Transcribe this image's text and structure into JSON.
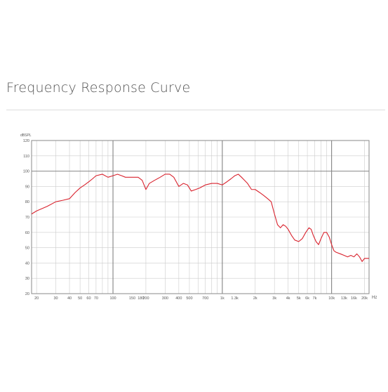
{
  "section": {
    "title": "Frequency Response Curve"
  },
  "chart_data": {
    "type": "line",
    "title": "",
    "xlabel": "",
    "ylabel": "dBSPL",
    "x_unit": "Hz",
    "x_scale": "log",
    "xlim": [
      18,
      22000
    ],
    "ylim": [
      20,
      120
    ],
    "grid": true,
    "y_ticks": [
      20,
      30,
      40,
      50,
      60,
      70,
      80,
      90,
      100,
      110,
      120
    ],
    "x_ticks": [
      {
        "v": 20,
        "label": "20"
      },
      {
        "v": 30,
        "label": "30"
      },
      {
        "v": 40,
        "label": "40"
      },
      {
        "v": 50,
        "label": "50"
      },
      {
        "v": 60,
        "label": "60"
      },
      {
        "v": 70,
        "label": "70"
      },
      {
        "v": 100,
        "label": "100"
      },
      {
        "v": 150,
        "label": "150"
      },
      {
        "v": 180,
        "label": "180"
      },
      {
        "v": 200,
        "label": "200"
      },
      {
        "v": 300,
        "label": "300"
      },
      {
        "v": 400,
        "label": "400"
      },
      {
        "v": 500,
        "label": "500"
      },
      {
        "v": 700,
        "label": "700"
      },
      {
        "v": 1000,
        "label": "1k"
      },
      {
        "v": 1300,
        "label": "1.3k"
      },
      {
        "v": 2000,
        "label": "2k"
      },
      {
        "v": 3000,
        "label": "3k"
      },
      {
        "v": 4000,
        "label": "4k"
      },
      {
        "v": 5000,
        "label": "5k"
      },
      {
        "v": 6000,
        "label": "6k"
      },
      {
        "v": 7000,
        "label": "7k"
      },
      {
        "v": 10000,
        "label": "10k"
      },
      {
        "v": 13000,
        "label": "13k"
      },
      {
        "v": 16000,
        "label": "16k"
      },
      {
        "v": 20000,
        "label": "20k"
      }
    ],
    "series": [
      {
        "color": "#d9232e",
        "points": [
          [
            18,
            72
          ],
          [
            20,
            74
          ],
          [
            25,
            77
          ],
          [
            30,
            80
          ],
          [
            35,
            81
          ],
          [
            40,
            82
          ],
          [
            45,
            86
          ],
          [
            50,
            89
          ],
          [
            55,
            91
          ],
          [
            60,
            93
          ],
          [
            65,
            95
          ],
          [
            70,
            97
          ],
          [
            80,
            98
          ],
          [
            90,
            96
          ],
          [
            100,
            97
          ],
          [
            110,
            98
          ],
          [
            120,
            97
          ],
          [
            130,
            96
          ],
          [
            150,
            96
          ],
          [
            170,
            96
          ],
          [
            185,
            94
          ],
          [
            200,
            88
          ],
          [
            215,
            92
          ],
          [
            240,
            94
          ],
          [
            270,
            96
          ],
          [
            300,
            98
          ],
          [
            330,
            98
          ],
          [
            360,
            96
          ],
          [
            400,
            90
          ],
          [
            440,
            92
          ],
          [
            480,
            91
          ],
          [
            520,
            87
          ],
          [
            570,
            88
          ],
          [
            620,
            89
          ],
          [
            700,
            91
          ],
          [
            800,
            92
          ],
          [
            900,
            92
          ],
          [
            1000,
            91
          ],
          [
            1100,
            93
          ],
          [
            1200,
            95
          ],
          [
            1300,
            97
          ],
          [
            1400,
            98
          ],
          [
            1500,
            96
          ],
          [
            1700,
            92
          ],
          [
            1850,
            88
          ],
          [
            2000,
            88
          ],
          [
            2200,
            86
          ],
          [
            2400,
            84
          ],
          [
            2600,
            82
          ],
          [
            2800,
            80
          ],
          [
            3000,
            72
          ],
          [
            3200,
            65
          ],
          [
            3400,
            63
          ],
          [
            3600,
            65
          ],
          [
            3800,
            64
          ],
          [
            4000,
            62
          ],
          [
            4300,
            58
          ],
          [
            4600,
            55
          ],
          [
            5000,
            54
          ],
          [
            5400,
            56
          ],
          [
            5800,
            60
          ],
          [
            6200,
            63
          ],
          [
            6500,
            62
          ],
          [
            6800,
            58
          ],
          [
            7200,
            54
          ],
          [
            7600,
            52
          ],
          [
            8000,
            56
          ],
          [
            8500,
            60
          ],
          [
            9000,
            60
          ],
          [
            9500,
            57
          ],
          [
            10000,
            52
          ],
          [
            10500,
            48
          ],
          [
            11000,
            47
          ],
          [
            12000,
            46
          ],
          [
            13000,
            45
          ],
          [
            14000,
            44
          ],
          [
            15000,
            45
          ],
          [
            16000,
            44
          ],
          [
            17000,
            46
          ],
          [
            18000,
            44
          ],
          [
            19000,
            41
          ],
          [
            20000,
            43
          ],
          [
            21000,
            43
          ],
          [
            22000,
            43
          ]
        ]
      }
    ]
  }
}
